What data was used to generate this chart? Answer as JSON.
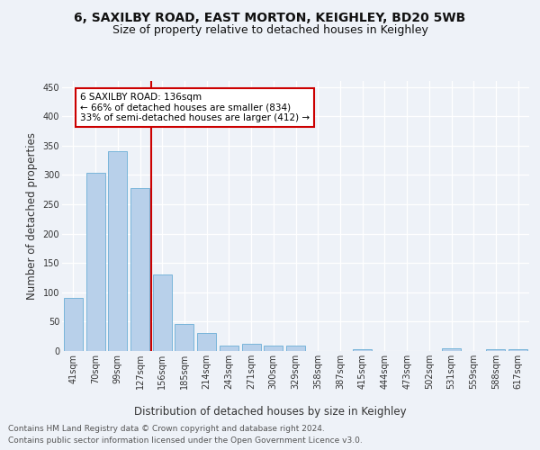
{
  "title_line1": "6, SAXILBY ROAD, EAST MORTON, KEIGHLEY, BD20 5WB",
  "title_line2": "Size of property relative to detached houses in Keighley",
  "xlabel": "Distribution of detached houses by size in Keighley",
  "ylabel": "Number of detached properties",
  "categories": [
    "41sqm",
    "70sqm",
    "99sqm",
    "127sqm",
    "156sqm",
    "185sqm",
    "214sqm",
    "243sqm",
    "271sqm",
    "300sqm",
    "329sqm",
    "358sqm",
    "387sqm",
    "415sqm",
    "444sqm",
    "473sqm",
    "502sqm",
    "531sqm",
    "559sqm",
    "588sqm",
    "617sqm"
  ],
  "values": [
    90,
    303,
    341,
    278,
    131,
    46,
    31,
    9,
    13,
    9,
    9,
    0,
    0,
    3,
    0,
    0,
    0,
    4,
    0,
    3,
    3
  ],
  "bar_color": "#b8d0ea",
  "bar_edge_color": "#6aaed6",
  "highlight_color": "#cc0000",
  "annotation_title": "6 SAXILBY ROAD: 136sqm",
  "annotation_line1": "← 66% of detached houses are smaller (834)",
  "annotation_line2": "33% of semi-detached houses are larger (412) →",
  "annotation_box_color": "#cc0000",
  "ylim": [
    0,
    460
  ],
  "yticks": [
    0,
    50,
    100,
    150,
    200,
    250,
    300,
    350,
    400,
    450
  ],
  "footer_line1": "Contains HM Land Registry data © Crown copyright and database right 2024.",
  "footer_line2": "Contains public sector information licensed under the Open Government Licence v3.0.",
  "bg_color": "#eef2f8",
  "plot_bg_color": "#eef2f8",
  "title_fontsize": 10,
  "subtitle_fontsize": 9,
  "axis_label_fontsize": 8.5,
  "tick_fontsize": 7,
  "annotation_fontsize": 7.5,
  "footer_fontsize": 6.5,
  "vline_x": 3.5
}
